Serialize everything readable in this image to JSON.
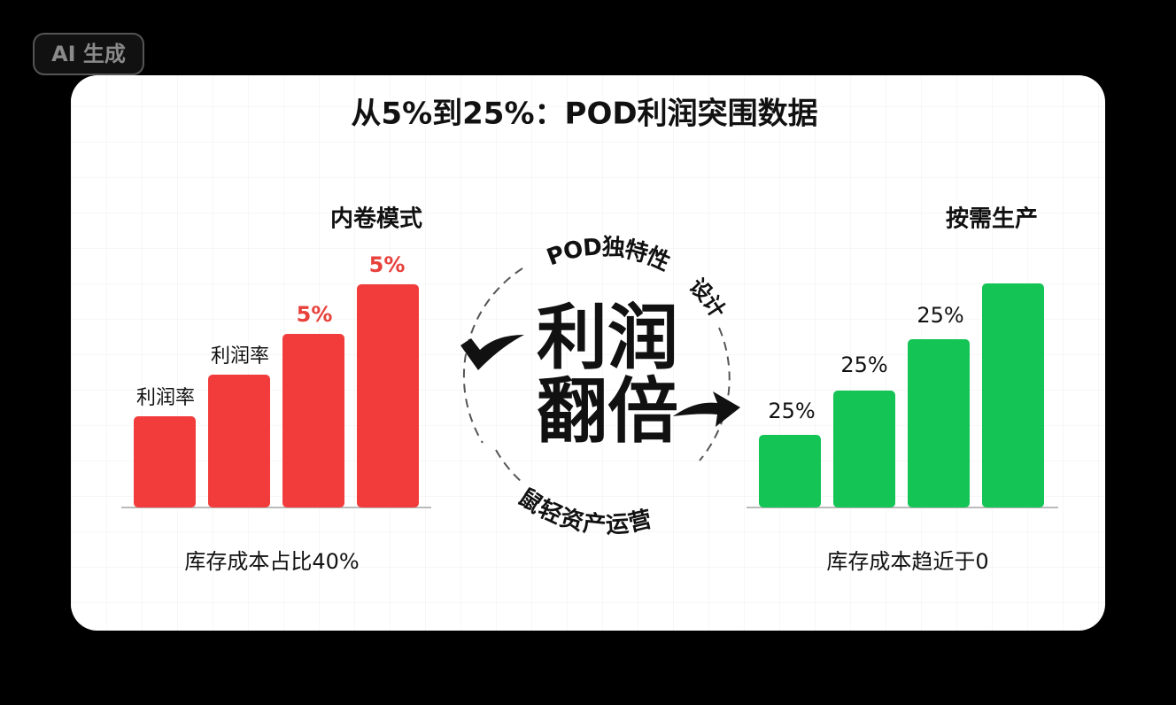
{
  "badge": "AI 生成",
  "title": "从5%到25%：POD利润突围数据",
  "left": {
    "heading": "内卷模式",
    "bar_labels": [
      "利润率",
      "利润率",
      "5%",
      "5%"
    ],
    "caption": "库存成本占比40%"
  },
  "right": {
    "heading": "按需生产",
    "bar_labels": [
      "25%",
      "25%",
      "25%"
    ],
    "caption": "库存成本趋近于0"
  },
  "center": {
    "line1": "利润",
    "line2": "翻倍",
    "arc_top": "POD独特性",
    "arc_right": "设计",
    "arc_bottom": "鼠轻资产运营"
  }
}
